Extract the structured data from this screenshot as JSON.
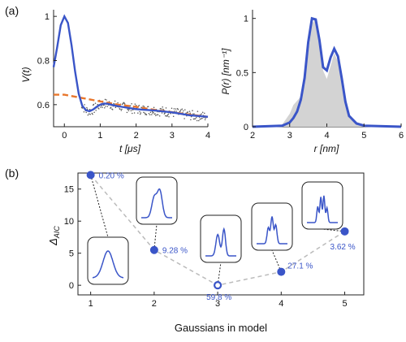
{
  "panel_labels": [
    "(a)",
    "(b)"
  ],
  "colors": {
    "fit": "#3a55c8",
    "background": "#e8762c",
    "data": "#555555",
    "dist_fill": "#d3d3d3",
    "trend": "#bbbbbb"
  },
  "chart_data": [
    {
      "type": "line",
      "panel": "(a) left",
      "xlabel": "t [μs]",
      "ylabel": "V(t)",
      "xlim": [
        -0.3,
        4
      ],
      "ylim": [
        0.5,
        1.03
      ],
      "xticks": [
        "0",
        "1",
        "2",
        "3",
        "4"
      ],
      "yticks": [
        "0.6",
        "0.8",
        "1"
      ],
      "series": [
        {
          "role": "fit",
          "x": [
            -0.3,
            -0.2,
            -0.1,
            0,
            0.1,
            0.2,
            0.3,
            0.4,
            0.5,
            0.6,
            0.7,
            0.8,
            0.9,
            1.0,
            1.1,
            1.2,
            1.3,
            1.4,
            1.6,
            1.8,
            2.0,
            2.2,
            2.5,
            3.0,
            3.5,
            4.0
          ],
          "y": [
            0.77,
            0.86,
            0.96,
            1.0,
            0.97,
            0.87,
            0.75,
            0.65,
            0.595,
            0.575,
            0.57,
            0.578,
            0.59,
            0.6,
            0.605,
            0.604,
            0.6,
            0.596,
            0.59,
            0.585,
            0.58,
            0.577,
            0.574,
            0.565,
            0.552,
            0.545
          ]
        },
        {
          "role": "background",
          "x": [
            -0.3,
            0,
            0.5,
            1.0,
            1.5,
            2.0,
            2.5,
            3.0,
            3.5,
            4.0
          ],
          "y": [
            0.645,
            0.645,
            0.63,
            0.615,
            0.6,
            0.59,
            0.577,
            0.566,
            0.555,
            0.545
          ]
        }
      ]
    },
    {
      "type": "area",
      "panel": "(a) right",
      "xlabel": "r [nm]",
      "ylabel": "P(r) [nm⁻¹]",
      "xlim": [
        2,
        6
      ],
      "ylim": [
        0,
        1.08
      ],
      "xticks": [
        "2",
        "3",
        "4",
        "5",
        "6"
      ],
      "yticks": [
        "0",
        "0.5",
        "1"
      ],
      "series": [
        {
          "role": "fit",
          "x": [
            2.0,
            2.8,
            3.0,
            3.1,
            3.2,
            3.3,
            3.4,
            3.5,
            3.6,
            3.7,
            3.8,
            3.9,
            4.0,
            4.1,
            4.2,
            4.3,
            4.4,
            4.5,
            4.6,
            4.8,
            5.0,
            6.0
          ],
          "y": [
            0,
            0.01,
            0.04,
            0.08,
            0.14,
            0.25,
            0.45,
            0.78,
            1.0,
            0.99,
            0.8,
            0.55,
            0.52,
            0.64,
            0.72,
            0.65,
            0.45,
            0.23,
            0.1,
            0.03,
            0.01,
            0
          ]
        },
        {
          "role": "reference",
          "x": [
            2.0,
            2.8,
            3.0,
            3.1,
            3.2,
            3.3,
            3.4,
            3.5,
            3.6,
            3.7,
            3.8,
            3.9,
            4.0,
            4.1,
            4.2,
            4.3,
            4.4,
            4.5,
            4.6,
            4.8,
            5.0,
            6.0
          ],
          "y": [
            0,
            0.02,
            0.12,
            0.2,
            0.24,
            0.28,
            0.38,
            0.68,
            0.95,
            1.0,
            0.82,
            0.52,
            0.44,
            0.56,
            0.68,
            0.6,
            0.4,
            0.2,
            0.08,
            0.02,
            0.005,
            0
          ]
        }
      ]
    },
    {
      "type": "scatter",
      "panel": "(b)",
      "xlabel": "Gaussians in model",
      "ylabel": "Δ_AIC",
      "xlim": [
        0.8,
        5.3
      ],
      "ylim": [
        -1.5,
        17.5
      ],
      "xticks": [
        "1",
        "2",
        "3",
        "4",
        "5"
      ],
      "yticks": [
        "0",
        "5",
        "10",
        "15"
      ],
      "points": [
        {
          "x": 1,
          "y": 17.2,
          "label": "0.20 %",
          "filled": true
        },
        {
          "x": 2,
          "y": 5.5,
          "label": "9.28 %",
          "filled": true
        },
        {
          "x": 3,
          "y": 0,
          "label": "59.8 %",
          "filled": false
        },
        {
          "x": 4,
          "y": 2.1,
          "label": "27.1 %",
          "filled": true
        },
        {
          "x": 5,
          "y": 8.4,
          "label": "3.62 %",
          "filled": true
        }
      ]
    }
  ]
}
